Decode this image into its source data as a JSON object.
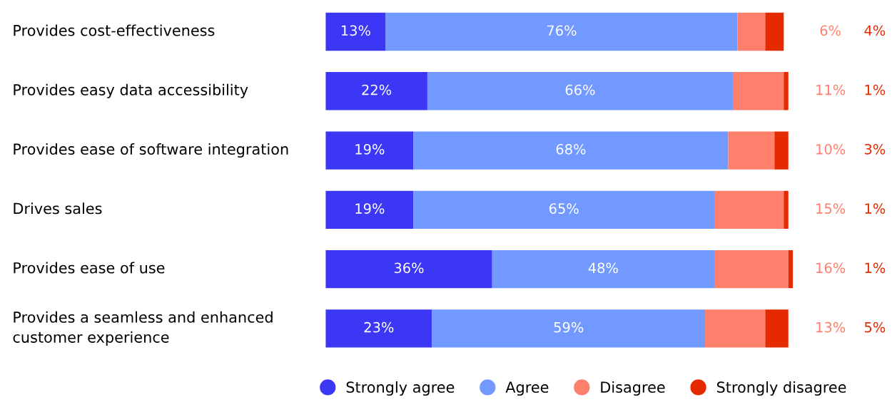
{
  "chart_data": {
    "type": "bar",
    "orientation": "horizontal",
    "stacked": true,
    "legend": "bottom",
    "tick_labels": "y",
    "xlim": [
      0,
      101
    ],
    "categories": [
      "Provides cost-effectiveness",
      "Provides easy data accessibility",
      "Provides ease of software integration",
      "Drives sales",
      "Provides ease of use",
      "Provides a seamless and enhanced customer experience"
    ],
    "series": [
      {
        "name": "Strongly agree",
        "color": "#3c37f5",
        "values": [
          13,
          22,
          19,
          19,
          36,
          23
        ],
        "value_labels": [
          "13%",
          "22%",
          "19%",
          "19%",
          "36%",
          "23%"
        ]
      },
      {
        "name": "Agree",
        "color": "#7299ff",
        "values": [
          76,
          66,
          68,
          65,
          48,
          59
        ],
        "value_labels": [
          "76%",
          "66%",
          "68%",
          "65%",
          "48%",
          "59%"
        ]
      },
      {
        "name": "Disagree",
        "color": "#fd7f6c",
        "values": [
          6,
          11,
          10,
          15,
          16,
          13
        ],
        "value_labels": [
          "6%",
          "11%",
          "10%",
          "15%",
          "16%",
          "13%"
        ]
      },
      {
        "name": "Strongly disagree",
        "color": "#e62a00",
        "values": [
          4,
          1,
          3,
          1,
          1,
          5
        ],
        "value_labels": [
          "4%",
          "1%",
          "3%",
          "1%",
          "1%",
          "5%"
        ]
      }
    ]
  }
}
